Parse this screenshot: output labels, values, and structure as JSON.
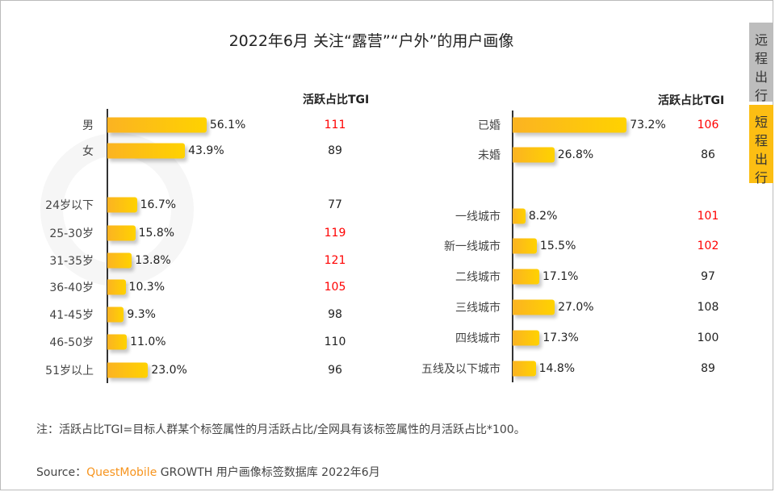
{
  "title": "2022年6月 关注“露营”“户外”的用户画像",
  "tabs": [
    {
      "label": "远\n程\n出\n行",
      "active": false
    },
    {
      "label": "短\n程\n出\n行",
      "active": true
    }
  ],
  "colors": {
    "bar_start": "#fbb322",
    "bar_end": "#ffd200",
    "highlight": "#ff0000",
    "tab_active": "#fcbe13",
    "tab_inactive": "#bdbdbd",
    "brand": "#f7941d"
  },
  "watermark": "QUESTMOBILE",
  "chart_data": [
    {
      "type": "bar",
      "orientation": "horizontal",
      "tgi_header": "活跃占比TGI",
      "unit": "%",
      "groups": [
        {
          "categories": [
            "男",
            "女"
          ],
          "values": [
            56.1,
            43.9
          ],
          "labels": [
            "56.1%",
            "43.9%"
          ],
          "tgi": [
            111,
            89
          ],
          "tgi_highlight": [
            true,
            false
          ]
        },
        {
          "categories": [
            "24岁以下",
            "25-30岁",
            "31-35岁",
            "36-40岁",
            "41-45岁",
            "46-50岁",
            "51岁以上"
          ],
          "values": [
            16.7,
            15.8,
            13.8,
            10.3,
            9.3,
            11.0,
            23.0
          ],
          "labels": [
            "16.7%",
            "15.8%",
            "13.8%",
            "10.3%",
            "9.3%",
            "11.0%",
            "23.0%"
          ],
          "tgi": [
            77,
            119,
            121,
            105,
            98,
            110,
            96
          ],
          "tgi_highlight": [
            false,
            true,
            true,
            true,
            false,
            false,
            false
          ]
        }
      ]
    },
    {
      "type": "bar",
      "orientation": "horizontal",
      "tgi_header": "活跃占比TGI",
      "unit": "%",
      "groups": [
        {
          "categories": [
            "已婚",
            "未婚"
          ],
          "values": [
            73.2,
            26.8
          ],
          "labels": [
            "73.2%",
            "26.8%"
          ],
          "tgi": [
            106,
            86
          ],
          "tgi_highlight": [
            true,
            false
          ]
        },
        {
          "categories": [
            "一线城市",
            "新一线城市",
            "二线城市",
            "三线城市",
            "四线城市",
            "五线及以下城市"
          ],
          "values": [
            8.2,
            15.5,
            17.1,
            27.0,
            17.3,
            14.8
          ],
          "labels": [
            "8.2%",
            "15.5%",
            "17.1%",
            "27.0%",
            "17.3%",
            "14.8%"
          ],
          "tgi": [
            101,
            102,
            97,
            108,
            100,
            89
          ],
          "tgi_highlight": [
            true,
            true,
            false,
            false,
            false,
            false
          ]
        }
      ]
    }
  ],
  "note": "注：活跃占比TGI=目标人群某个标签属性的月活跃占比/全网具有该标签属性的月活跃占比*100。",
  "source": {
    "prefix": "Source：",
    "brand": "QuestMobile",
    "rest": " GROWTH 用户画像标签数据库 2022年6月"
  }
}
